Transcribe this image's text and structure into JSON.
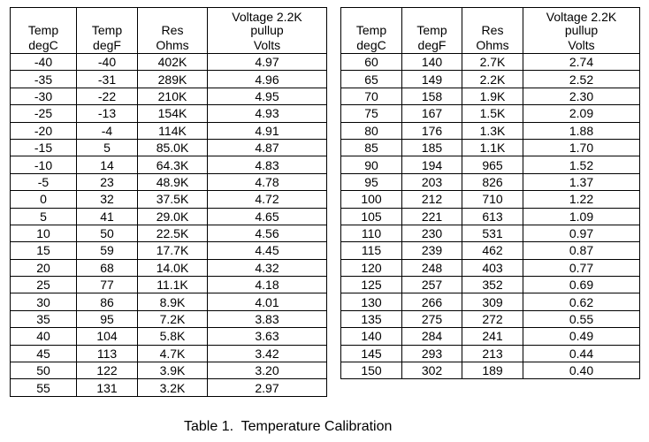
{
  "headers": {
    "temp_c": "Temp",
    "temp_f": "Temp",
    "res": "Res",
    "voltage_line1": "Voltage 2.2K",
    "voltage_line2": "pullup",
    "unit_c": "degC",
    "unit_f": "degF",
    "unit_res": "Ohms",
    "unit_volt": "Volts"
  },
  "left_rows": [
    [
      "-40",
      "-40",
      "402K",
      "4.97"
    ],
    [
      "-35",
      "-31",
      "289K",
      "4.96"
    ],
    [
      "-30",
      "-22",
      "210K",
      "4.95"
    ],
    [
      "-25",
      "-13",
      "154K",
      "4.93"
    ],
    [
      "-20",
      "-4",
      "114K",
      "4.91"
    ],
    [
      "-15",
      "5",
      "85.0K",
      "4.87"
    ],
    [
      "-10",
      "14",
      "64.3K",
      "4.83"
    ],
    [
      "-5",
      "23",
      "48.9K",
      "4.78"
    ],
    [
      "0",
      "32",
      "37.5K",
      "4.72"
    ],
    [
      "5",
      "41",
      "29.0K",
      "4.65"
    ],
    [
      "10",
      "50",
      "22.5K",
      "4.56"
    ],
    [
      "15",
      "59",
      "17.7K",
      "4.45"
    ],
    [
      "20",
      "68",
      "14.0K",
      "4.32"
    ],
    [
      "25",
      "77",
      "11.1K",
      "4.18"
    ],
    [
      "30",
      "86",
      "8.9K",
      "4.01"
    ],
    [
      "35",
      "95",
      "7.2K",
      "3.83"
    ],
    [
      "40",
      "104",
      "5.8K",
      "3.63"
    ],
    [
      "45",
      "113",
      "4.7K",
      "3.42"
    ],
    [
      "50",
      "122",
      "3.9K",
      "3.20"
    ],
    [
      "55",
      "131",
      "3.2K",
      "2.97"
    ]
  ],
  "right_rows": [
    [
      "60",
      "140",
      "2.7K",
      "2.74"
    ],
    [
      "65",
      "149",
      "2.2K",
      "2.52"
    ],
    [
      "70",
      "158",
      "1.9K",
      "2.30"
    ],
    [
      "75",
      "167",
      "1.5K",
      "2.09"
    ],
    [
      "80",
      "176",
      "1.3K",
      "1.88"
    ],
    [
      "85",
      "185",
      "1.1K",
      "1.70"
    ],
    [
      "90",
      "194",
      "965",
      "1.52"
    ],
    [
      "95",
      "203",
      "826",
      "1.37"
    ],
    [
      "100",
      "212",
      "710",
      "1.22"
    ],
    [
      "105",
      "221",
      "613",
      "1.09"
    ],
    [
      "110",
      "230",
      "531",
      "0.97"
    ],
    [
      "115",
      "239",
      "462",
      "0.87"
    ],
    [
      "120",
      "248",
      "403",
      "0.77"
    ],
    [
      "125",
      "257",
      "352",
      "0.69"
    ],
    [
      "130",
      "266",
      "309",
      "0.62"
    ],
    [
      "135",
      "275",
      "272",
      "0.55"
    ],
    [
      "140",
      "284",
      "241",
      "0.49"
    ],
    [
      "145",
      "293",
      "213",
      "0.44"
    ],
    [
      "150",
      "302",
      "189",
      "0.40"
    ]
  ],
  "caption": "Table 1.  Temperature Calibration"
}
